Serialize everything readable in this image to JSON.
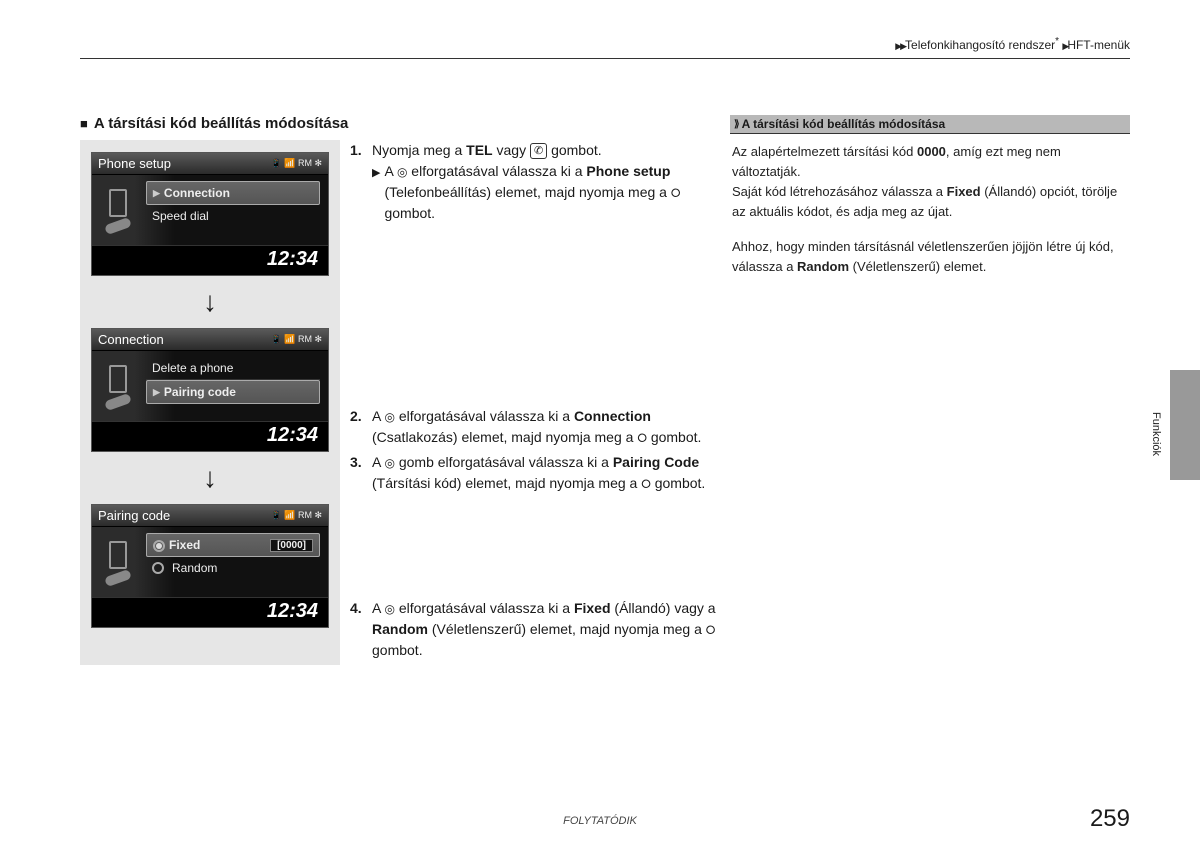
{
  "breadcrumb": {
    "part1": "Telefonkihangosító rendszer",
    "sup": "*",
    "part2": "HFT-menük"
  },
  "section_title": "A társítási kód beállítás módosítása",
  "screens": {
    "time": "12:34",
    "status": "📱 📶 RM ✻",
    "s1": {
      "title": "Phone setup",
      "row1": "Connection",
      "row2": "Speed dial"
    },
    "s2": {
      "title": "Connection",
      "row1": "Delete a phone",
      "row2": "Pairing code"
    },
    "s3": {
      "title": "Pairing code",
      "opt1": "Fixed",
      "opt2": "Random",
      "code": "[0000]"
    }
  },
  "steps": {
    "n1": "1.",
    "t1a": "Nyomja meg a ",
    "t1b": "TEL",
    "t1c": " vagy ",
    "t1d": " gombot.",
    "t1sub_a": "A ",
    "t1sub_b": " elforgatásával válassza ki a ",
    "t1sub_c": "Phone setup",
    "t1sub_d": " (Telefonbeállítás) elemet, majd nyomja meg a ",
    "t1sub_e": " gombot.",
    "n2": "2.",
    "t2a": "A ",
    "t2b": " elforgatásával válassza ki a ",
    "t2c": "Connection",
    "t2d": " (Csatlakozás) elemet, majd nyomja meg a ",
    "t2e": " gombot.",
    "n3": "3.",
    "t3a": "A ",
    "t3b": " gomb elforgatásával válassza ki a ",
    "t3c": "Pairing Code",
    "t3d": " (Társítási kód) elemet, majd nyomja meg a ",
    "t3e": " gombot.",
    "n4": "4.",
    "t4a": "A ",
    "t4b": " elforgatásával válassza ki a ",
    "t4c": "Fixed",
    "t4d": " (Állandó) vagy a ",
    "t4e": "Random",
    "t4f": " (Véletlenszerű) elemet, majd nyomja meg a ",
    "t4g": " gombot."
  },
  "sidebar": {
    "header": "A társítási kód beállítás módosítása",
    "p1a": "Az alapértelmezett társítási kód ",
    "p1b": "0000",
    "p1c": ", amíg ezt meg nem változtatják.",
    "p2a": "Saját kód létrehozásához válassza a ",
    "p2b": "Fixed",
    "p2c": " (Állandó) opciót, törölje az aktuális kódot, és adja meg az újat.",
    "p3a": "Ahhoz, hogy minden társításnál véletlenszerűen jöjjön létre új kód, válassza a ",
    "p3b": "Random",
    "p3c": " (Véletlenszerű) elemet."
  },
  "edge_tab": "Funkciók",
  "footer": "FOLYTATÓDIK",
  "page_number": "259",
  "icons": {
    "phone_btn": "✆",
    "dial": "◎",
    "push": "⭘"
  }
}
